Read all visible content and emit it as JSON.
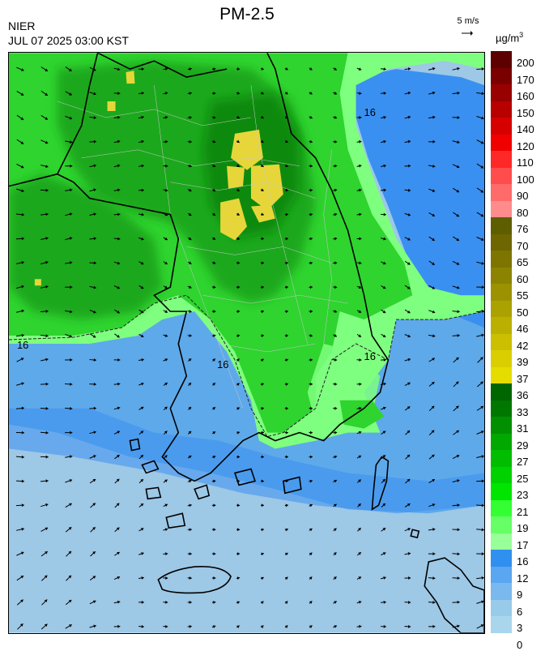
{
  "header": {
    "agency": "NIER",
    "timestamp": "JUL 07 2025 03:00 KST",
    "title": "PM-2.5",
    "wind_reference": "5 m/s",
    "unit_base": "µg/m",
    "unit_exp": "3"
  },
  "map": {
    "contour_label": "16",
    "colors": {
      "sea_light": "#9dc8e6",
      "sea_mid": "#5ea9ea",
      "blue_band": "#3a90f0",
      "green_light": "#7fff7f",
      "green_mid": "#2fd42f",
      "green_dark": "#1ca81c",
      "green_darker": "#118a11",
      "yellow": "#e6d63a",
      "coast": "#000000",
      "boundary": "#c8c8c8"
    }
  },
  "colorbar": {
    "levels": [
      "200",
      "170",
      "160",
      "150",
      "140",
      "120",
      "110",
      "100",
      "90",
      "80",
      "76",
      "70",
      "65",
      "60",
      "55",
      "50",
      "46",
      "42",
      "39",
      "37",
      "36",
      "33",
      "31",
      "29",
      "27",
      "25",
      "23",
      "21",
      "19",
      "17",
      "16",
      "12",
      "9",
      "6",
      "3",
      "0"
    ],
    "colors": [
      "#5c0000",
      "#7a0000",
      "#990000",
      "#b80000",
      "#d60000",
      "#f00000",
      "#ff2828",
      "#ff4d4d",
      "#ff6b6b",
      "#ff8c8c",
      "#5e5e00",
      "#6e6600",
      "#7d7500",
      "#8c8400",
      "#9c9200",
      "#aba100",
      "#bbb000",
      "#cbbf00",
      "#dbce00",
      "#e6dd00",
      "#006600",
      "#007800",
      "#009000",
      "#00a800",
      "#00bd00",
      "#00d200",
      "#00e600",
      "#33ff33",
      "#66ff66",
      "#99ff99",
      "#3090f0",
      "#5aa6f0",
      "#79b9ee",
      "#97cbe9",
      "#a9d6ec"
    ]
  }
}
